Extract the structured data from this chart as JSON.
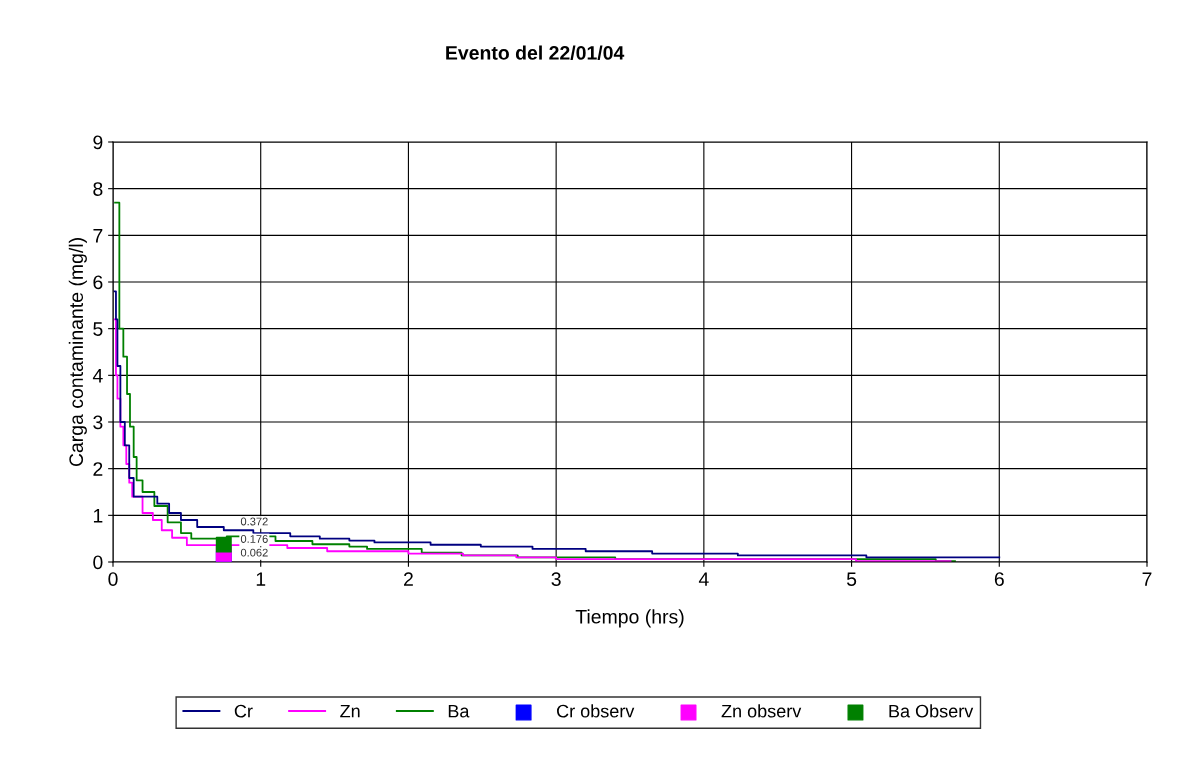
{
  "chart_data": {
    "type": "step",
    "title": "Evento del 22/01/04",
    "xlabel": "Tiempo (hrs)",
    "ylabel": "Carga contaminante (mg/l)",
    "xlim": [
      0,
      7
    ],
    "xticks": [
      0,
      1,
      2,
      3,
      4,
      5,
      6,
      7
    ],
    "ylim": [
      0,
      9
    ],
    "yticks": [
      0,
      1,
      2,
      3,
      4,
      5,
      6,
      7,
      8,
      9
    ],
    "grid": true,
    "legend": "bottom",
    "marker": "none",
    "line_style": "solid",
    "series": [
      {
        "name": "Cr",
        "color": "#000080",
        "x": [
          0.01,
          0.02,
          0.03,
          0.05,
          0.08,
          0.11,
          0.14,
          0.23,
          0.3,
          0.38,
          0.46,
          0.57,
          0.75,
          0.95,
          1.2,
          1.4,
          1.6,
          1.77,
          2.15,
          2.49,
          2.84,
          3.2,
          3.65,
          4.23,
          5.1,
          6.0
        ],
        "values": [
          5.8,
          5.2,
          4.2,
          3.0,
          2.5,
          1.8,
          1.4,
          1.4,
          1.25,
          1.05,
          0.9,
          0.75,
          0.68,
          0.62,
          0.55,
          0.5,
          0.46,
          0.42,
          0.37,
          0.33,
          0.28,
          0.23,
          0.18,
          0.14,
          0.1,
          0.1
        ]
      },
      {
        "name": "Zn",
        "color": "#ff00ff",
        "x": [
          0.01,
          0.02,
          0.03,
          0.05,
          0.07,
          0.09,
          0.11,
          0.13,
          0.2,
          0.27,
          0.33,
          0.4,
          0.5,
          1.18,
          1.45,
          2.0,
          2.37,
          2.73,
          3.0,
          5.03,
          5.67
        ],
        "values": [
          5.2,
          4.0,
          3.5,
          2.9,
          2.5,
          2.1,
          1.7,
          1.4,
          1.05,
          0.9,
          0.68,
          0.52,
          0.36,
          0.3,
          0.23,
          0.18,
          0.14,
          0.1,
          0.06,
          0.02,
          0.02
        ]
      },
      {
        "name": "Ba",
        "color": "#008000",
        "x": [
          0.014,
          0.043,
          0.07,
          0.095,
          0.115,
          0.14,
          0.16,
          0.2,
          0.28,
          0.37,
          0.46,
          0.53,
          0.77,
          1.1,
          1.35,
          1.6,
          1.72,
          2.09,
          2.36,
          2.74,
          3.4,
          5.57,
          5.7
        ],
        "values": [
          7.7,
          5.0,
          4.4,
          3.6,
          2.9,
          2.25,
          1.75,
          1.5,
          1.2,
          0.85,
          0.62,
          0.5,
          0.55,
          0.45,
          0.38,
          0.33,
          0.28,
          0.2,
          0.14,
          0.1,
          0.06,
          0.02,
          0.02
        ]
      },
      {
        "name": "Cr observ",
        "type": "scatter",
        "marker": "square",
        "color": "#0000ff",
        "x": [
          0.75
        ],
        "values": [
          0.062
        ],
        "value_labels": [
          "0.062"
        ]
      },
      {
        "name": "Zn observ",
        "type": "scatter",
        "marker": "square",
        "color": "#ff00ff",
        "x": [
          0.75
        ],
        "values": [
          0.176
        ],
        "value_labels": [
          "0.176"
        ]
      },
      {
        "name": "Ba Observ",
        "type": "scatter",
        "marker": "square",
        "color": "#008000",
        "x": [
          0.75
        ],
        "values": [
          0.372
        ],
        "value_labels": [
          "0.372"
        ]
      }
    ]
  }
}
